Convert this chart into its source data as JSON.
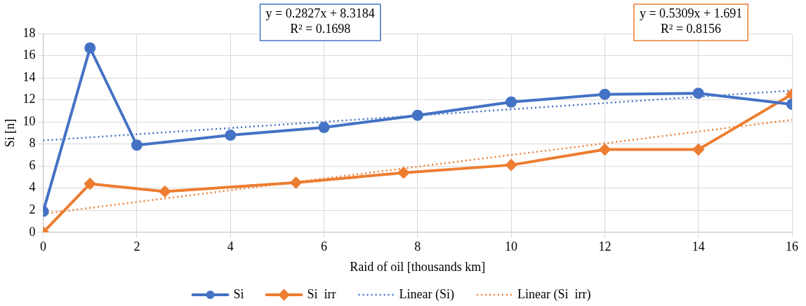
{
  "chart_data": {
    "type": "line",
    "xlabel": "Raid of oil [thousands km]",
    "ylabel": "Si [n]",
    "xlim": [
      0,
      16
    ],
    "xticks": [
      0,
      2,
      4,
      6,
      8,
      10,
      12,
      14,
      16
    ],
    "ylim": [
      0,
      18
    ],
    "yticks": [
      0,
      2,
      4,
      6,
      8,
      10,
      12,
      14,
      16,
      18
    ],
    "grid": true,
    "legend": "bottom",
    "annotations": [
      "y = 0.2827x + 8.3184\nR² = 0.1698",
      "y = 0.5309x + 1.691\nR² = 0.8156"
    ],
    "series": [
      {
        "name": "Si",
        "color": "#4472c4",
        "marker": "circle",
        "line_style": "solid",
        "x": [
          0,
          1,
          2,
          4,
          6,
          8,
          10,
          12,
          14,
          16
        ],
        "values": [
          1.9,
          16.7,
          7.9,
          8.8,
          9.5,
          10.6,
          11.8,
          12.5,
          12.6,
          11.6
        ]
      },
      {
        "name": "Si  irr",
        "color": "#ed7d31",
        "marker": "diamond",
        "line_style": "solid",
        "x": [
          0,
          1,
          2.6,
          5.4,
          7.7,
          10,
          12,
          14,
          16
        ],
        "values": [
          0,
          4.4,
          3.7,
          4.5,
          5.4,
          6.1,
          7.5,
          7.5,
          12.5
        ]
      },
      {
        "name": "Linear (Si)",
        "color": "#4472c4",
        "marker": "none",
        "line_style": "dotted",
        "x": [
          0,
          16
        ],
        "values": [
          8.32,
          12.84
        ]
      },
      {
        "name": "Linear (Si  irr)",
        "color": "#ed7d31",
        "marker": "none",
        "line_style": "dotted",
        "x": [
          0,
          16
        ],
        "values": [
          1.69,
          10.19
        ]
      }
    ]
  }
}
